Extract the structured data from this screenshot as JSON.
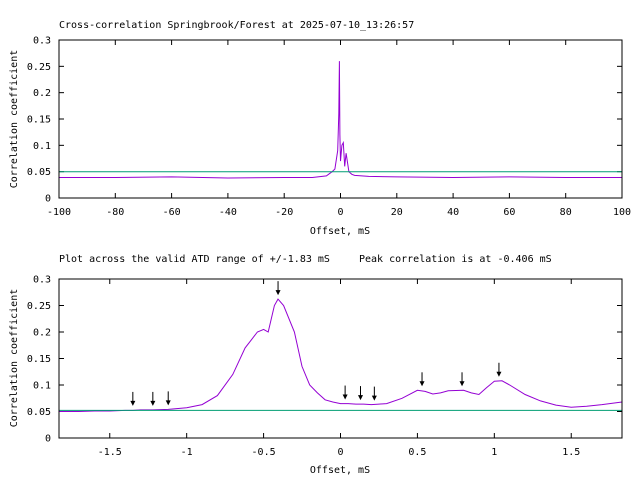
{
  "chart_data": [
    {
      "type": "line",
      "title": "Cross-correlation Springbrook/Forest at 2025-07-10_13:26:57",
      "xlabel": "Offset, mS",
      "ylabel": "Correlation coefficient",
      "xlim": [
        -100,
        100
      ],
      "ylim": [
        0,
        0.3
      ],
      "xticks": [
        -100,
        -80,
        -60,
        -40,
        -20,
        0,
        20,
        40,
        60,
        80,
        100
      ],
      "yticks": [
        0,
        0.05,
        0.1,
        0.15,
        0.2,
        0.25,
        0.3
      ],
      "grid": false,
      "series": [
        {
          "color": "#9400d3",
          "x": [
            -100,
            -80,
            -60,
            -40,
            -20,
            -10,
            -5,
            -3,
            -2,
            -1,
            -0.6,
            -0.4,
            -0.2,
            0,
            0.5,
            1,
            1.5,
            2,
            3,
            4,
            5,
            10,
            20,
            40,
            60,
            80,
            100
          ],
          "y": [
            0.039,
            0.039,
            0.04,
            0.038,
            0.039,
            0.039,
            0.042,
            0.05,
            0.055,
            0.09,
            0.16,
            0.26,
            0.12,
            0.07,
            0.1,
            0.105,
            0.06,
            0.085,
            0.05,
            0.045,
            0.043,
            0.041,
            0.04,
            0.039,
            0.04,
            0.039,
            0.039
          ]
        },
        {
          "color": "#009e73",
          "x": [
            -100,
            100
          ],
          "y": [
            0.05,
            0.05
          ]
        }
      ]
    },
    {
      "type": "line",
      "title": "Plot across the valid ATD range of +/-1.83 mS",
      "subtitle": "Peak correlation is at -0.406 mS",
      "xlabel": "Offset, mS",
      "ylabel": "Correlation coefficient",
      "xlim": [
        -1.83,
        1.83
      ],
      "ylim": [
        0,
        0.3
      ],
      "xticks": [
        -1.5,
        -1,
        -0.5,
        0,
        0.5,
        1,
        1.5
      ],
      "yticks": [
        0,
        0.05,
        0.1,
        0.15,
        0.2,
        0.25,
        0.3
      ],
      "grid": false,
      "series": [
        {
          "color": "#9400d3",
          "x": [
            -1.83,
            -1.7,
            -1.6,
            -1.5,
            -1.4,
            -1.35,
            -1.3,
            -1.22,
            -1.12,
            -1.0,
            -0.9,
            -0.8,
            -0.7,
            -0.62,
            -0.58,
            -0.54,
            -0.5,
            -0.47,
            -0.43,
            -0.406,
            -0.37,
            -0.3,
            -0.25,
            -0.2,
            -0.15,
            -0.1,
            -0.05,
            0,
            0.05,
            0.1,
            0.15,
            0.2,
            0.25,
            0.3,
            0.4,
            0.5,
            0.55,
            0.6,
            0.65,
            0.7,
            0.8,
            0.85,
            0.9,
            0.95,
            1.0,
            1.05,
            1.1,
            1.2,
            1.3,
            1.4,
            1.5,
            1.6,
            1.7,
            1.83
          ],
          "y": [
            0.05,
            0.05,
            0.051,
            0.051,
            0.052,
            0.052,
            0.053,
            0.053,
            0.054,
            0.057,
            0.063,
            0.08,
            0.12,
            0.17,
            0.185,
            0.2,
            0.205,
            0.2,
            0.25,
            0.262,
            0.25,
            0.2,
            0.135,
            0.1,
            0.085,
            0.072,
            0.068,
            0.065,
            0.065,
            0.064,
            0.064,
            0.063,
            0.064,
            0.065,
            0.075,
            0.09,
            0.088,
            0.083,
            0.085,
            0.089,
            0.09,
            0.085,
            0.082,
            0.095,
            0.107,
            0.108,
            0.1,
            0.082,
            0.07,
            0.062,
            0.058,
            0.06,
            0.063,
            0.068
          ]
        },
        {
          "color": "#009e73",
          "x": [
            -1.83,
            1.83
          ],
          "y": [
            0.052,
            0.052
          ]
        }
      ],
      "annotations": [
        {
          "type": "arrow",
          "x": -1.35,
          "y": 0.053
        },
        {
          "type": "arrow",
          "x": -1.22,
          "y": 0.053
        },
        {
          "type": "arrow",
          "x": -1.12,
          "y": 0.054
        },
        {
          "type": "arrow",
          "x": -0.406,
          "y": 0.262
        },
        {
          "type": "arrow",
          "x": 0.03,
          "y": 0.065
        },
        {
          "type": "arrow",
          "x": 0.13,
          "y": 0.064
        },
        {
          "type": "arrow",
          "x": 0.22,
          "y": 0.063
        },
        {
          "type": "arrow",
          "x": 0.53,
          "y": 0.09
        },
        {
          "type": "arrow",
          "x": 0.79,
          "y": 0.09
        },
        {
          "type": "arrow",
          "x": 1.03,
          "y": 0.108
        }
      ]
    }
  ]
}
